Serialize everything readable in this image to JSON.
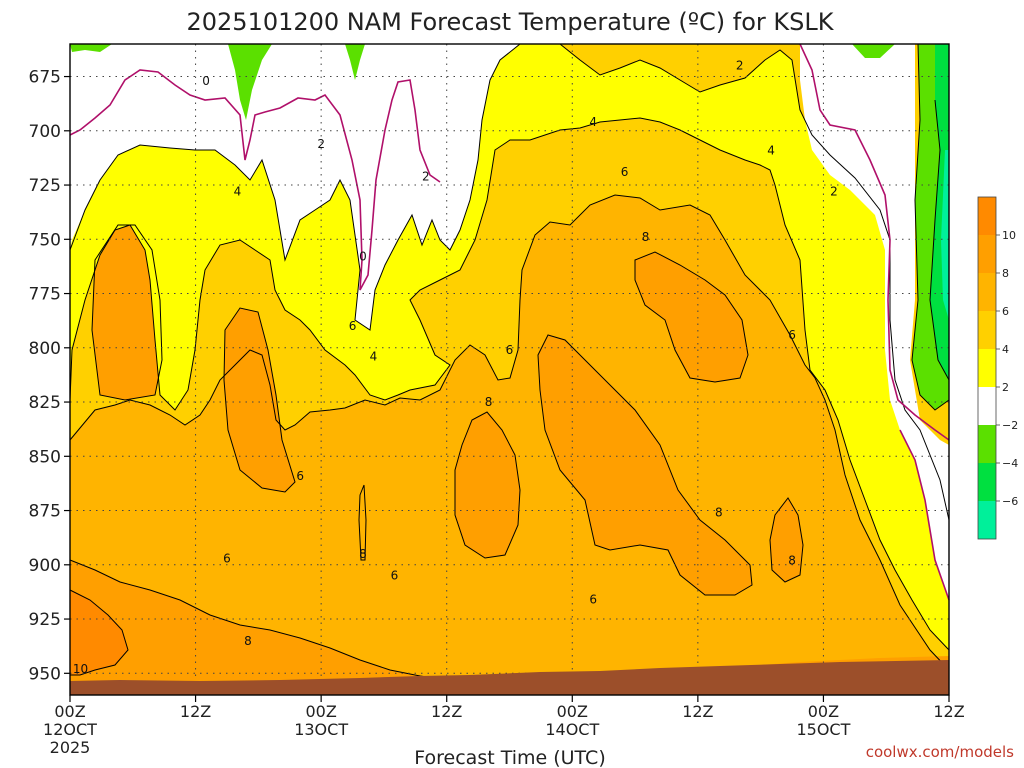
{
  "chart_data": {
    "type": "heatmap",
    "title": "2025101200 NAM Forecast Temperature (ºC) for KSLK",
    "xlabel": "Forecast Time (UTC)",
    "y_ticks": [
      "675",
      "700",
      "725",
      "750",
      "775",
      "800",
      "825",
      "850",
      "875",
      "900",
      "925",
      "950"
    ],
    "x_ticks": [
      {
        "hour": "00Z",
        "date": "12OCT",
        "year": "2025"
      },
      {
        "hour": "12Z",
        "date": "",
        "year": ""
      },
      {
        "hour": "00Z",
        "date": "13OCT",
        "year": ""
      },
      {
        "hour": "12Z",
        "date": "",
        "year": ""
      },
      {
        "hour": "00Z",
        "date": "14OCT",
        "year": ""
      },
      {
        "hour": "12Z",
        "date": "",
        "year": ""
      },
      {
        "hour": "00Z",
        "date": "15OCT",
        "year": ""
      },
      {
        "hour": "12Z",
        "date": "",
        "year": ""
      }
    ],
    "ylim": [
      660,
      960
    ],
    "xlim_hours": [
      0,
      84
    ],
    "colorbar": {
      "labels": [
        "10",
        "8",
        "6",
        "4",
        "2",
        "−2",
        "−4",
        "−6"
      ],
      "bins": [
        {
          "min": 10,
          "max": 12,
          "color": "#ff8a00"
        },
        {
          "min": 8,
          "max": 10,
          "color": "#ff9f00"
        },
        {
          "min": 6,
          "max": 8,
          "color": "#ffb400"
        },
        {
          "min": 4,
          "max": 6,
          "color": "#ffd000"
        },
        {
          "min": 2,
          "max": 4,
          "color": "#ffff00"
        },
        {
          "min": -2,
          "max": 2,
          "color": "#ffffff"
        },
        {
          "min": -4,
          "max": -2,
          "color": "#5be000"
        },
        {
          "min": -6,
          "max": -4,
          "color": "#00e040"
        },
        {
          "min": -8,
          "max": -6,
          "color": "#00f09a"
        }
      ]
    },
    "contour_labels": [
      {
        "text": "0",
        "hour": 13,
        "p": 677
      },
      {
        "text": "2",
        "hour": 24,
        "p": 706
      },
      {
        "text": "4",
        "hour": 16,
        "p": 728
      },
      {
        "text": "0",
        "hour": 28,
        "p": 758
      },
      {
        "text": "2",
        "hour": 34,
        "p": 721
      },
      {
        "text": "6",
        "hour": 27,
        "p": 790
      },
      {
        "text": "4",
        "hour": 29,
        "p": 804
      },
      {
        "text": "6",
        "hour": 22,
        "p": 859
      },
      {
        "text": "8",
        "hour": 28,
        "p": 895
      },
      {
        "text": "6",
        "hour": 15,
        "p": 897
      },
      {
        "text": "8",
        "hour": 17,
        "p": 935
      },
      {
        "text": "6",
        "hour": 31,
        "p": 905
      },
      {
        "text": "10",
        "hour": 1,
        "p": 948
      },
      {
        "text": "8",
        "hour": 40,
        "p": 825
      },
      {
        "text": "6",
        "hour": 42,
        "p": 801
      },
      {
        "text": "4",
        "hour": 50,
        "p": 696
      },
      {
        "text": "6",
        "hour": 53,
        "p": 719
      },
      {
        "text": "8",
        "hour": 55,
        "p": 749
      },
      {
        "text": "2",
        "hour": 64,
        "p": 670
      },
      {
        "text": "4",
        "hour": 67,
        "p": 709
      },
      {
        "text": "6",
        "hour": 69,
        "p": 794
      },
      {
        "text": "2",
        "hour": 73,
        "p": 728
      },
      {
        "text": "8",
        "hour": 62,
        "p": 876
      },
      {
        "text": "6",
        "hour": 50,
        "p": 916
      },
      {
        "text": "8",
        "hour": 69,
        "p": 898
      }
    ]
  },
  "credit": "coolwx.com/models"
}
